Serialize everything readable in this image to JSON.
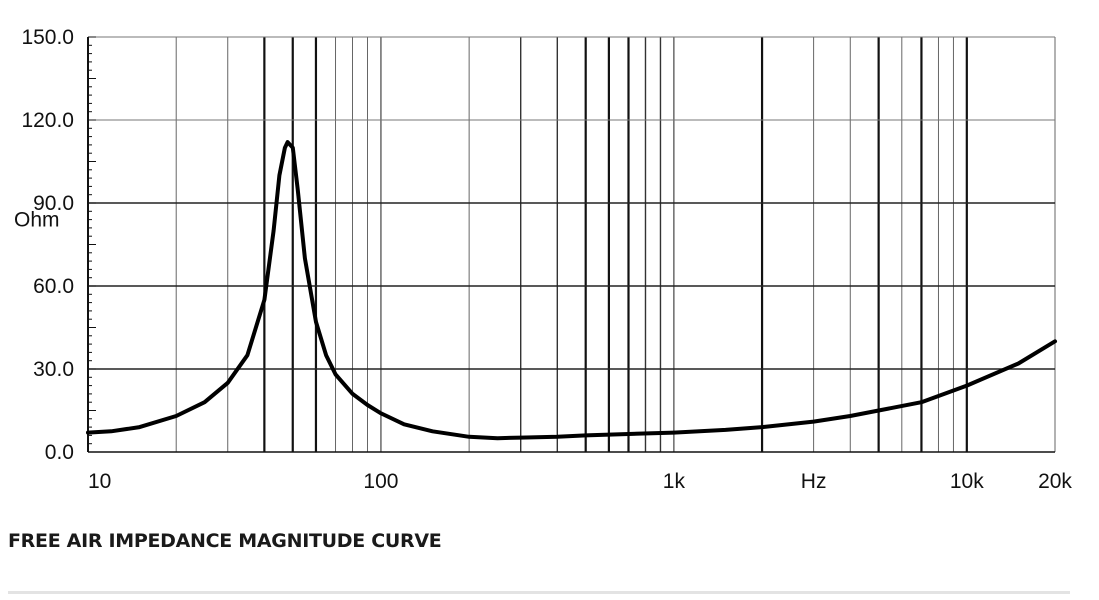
{
  "chart_data": {
    "type": "line",
    "title": "FREE AIR IMPEDANCE MAGNITUDE CURVE",
    "xlabel": "Hz",
    "ylabel": "Ohm",
    "x_scale": "log",
    "xlim": [
      10,
      20000
    ],
    "ylim": [
      0,
      150
    ],
    "x_ticks": [
      {
        "value": 10,
        "label": "10"
      },
      {
        "value": 100,
        "label": "100"
      },
      {
        "value": 1000,
        "label": "1k"
      },
      {
        "value": 10000,
        "label": "10k"
      },
      {
        "value": 20000,
        "label": "20k"
      }
    ],
    "y_ticks": [
      {
        "value": 0,
        "label": "0.0"
      },
      {
        "value": 30,
        "label": "30.0"
      },
      {
        "value": 60,
        "label": "60.0"
      },
      {
        "value": 90,
        "label": "90.0"
      },
      {
        "value": 120,
        "label": "120.0"
      },
      {
        "value": 150,
        "label": "150.0"
      }
    ],
    "grid": true,
    "series": [
      {
        "x": [
          10,
          12,
          15,
          20,
          25,
          30,
          35,
          40,
          43,
          45,
          47,
          48,
          50,
          52,
          55,
          60,
          65,
          70,
          80,
          90,
          100,
          120,
          150,
          200,
          250,
          300,
          400,
          500,
          700,
          1000,
          1500,
          2000,
          3000,
          4000,
          5000,
          7000,
          10000,
          15000,
          20000
        ],
        "y": [
          7,
          7.5,
          9,
          13,
          18,
          25,
          35,
          55,
          80,
          100,
          110,
          112,
          110,
          95,
          70,
          47,
          35,
          28,
          21,
          17,
          14,
          10,
          7.5,
          5.5,
          5,
          5.2,
          5.5,
          6,
          6.5,
          7,
          8,
          9,
          11,
          13,
          15,
          18,
          24,
          32,
          40
        ]
      }
    ]
  }
}
